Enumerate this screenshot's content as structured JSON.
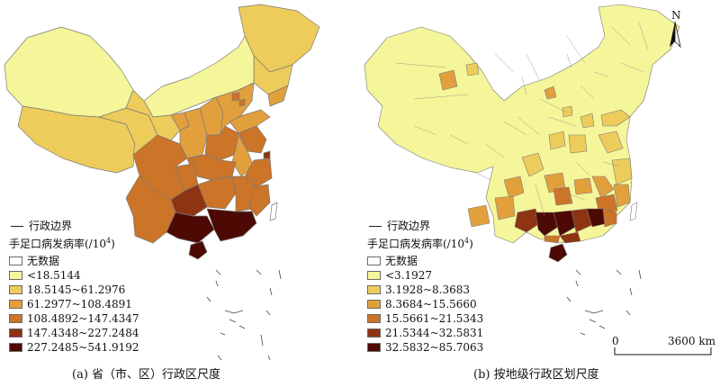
{
  "panels": [
    {
      "caption": "(a) 省（市、区）行政区尺度",
      "legend": {
        "boundary_label": "行政边界",
        "title_main": "手足口病发病率(/10",
        "title_sup": "4",
        "title_end": ")",
        "classes": [
          {
            "label": "无数据",
            "color": "#ffffff"
          },
          {
            "label": "<18.5144",
            "color": "#f5f59a"
          },
          {
            "label": "18.5145~61.2976",
            "color": "#edcc5b"
          },
          {
            "label": "61.2977~108.4891",
            "color": "#e2a03c"
          },
          {
            "label": "108.4892~147.4347",
            "color": "#cc7427"
          },
          {
            "label": "147.4348~227.2484",
            "color": "#8e3412"
          },
          {
            "label": "227.2485~541.9192",
            "color": "#4d0a05"
          }
        ]
      }
    },
    {
      "caption": "(b) 按地级行政区划尺度",
      "legend": {
        "boundary_label": "行政边界",
        "title_main": "手足口病发病率(/10",
        "title_sup": "4",
        "title_end": ")",
        "classes": [
          {
            "label": "无数据",
            "color": "#ffffff"
          },
          {
            "label": "<3.1927",
            "color": "#f5f59a"
          },
          {
            "label": "3.1928~8.3683",
            "color": "#edcc5b"
          },
          {
            "label": "8.3684~15.5660",
            "color": "#e2a03c"
          },
          {
            "label": "15.5661~21.5343",
            "color": "#cc7427"
          },
          {
            "label": "21.5344~32.5831",
            "color": "#8e3412"
          },
          {
            "label": "32.5832~85.7063",
            "color": "#4d0a05"
          }
        ]
      }
    }
  ],
  "north_arrow": {
    "label": "N"
  },
  "scale_bar": {
    "start": "0",
    "end": "3600 km"
  }
}
